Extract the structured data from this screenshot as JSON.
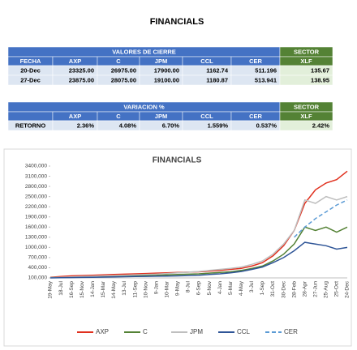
{
  "header": {
    "title": "FINANCIALS"
  },
  "table1": {
    "group": "VALORES DE CIERRE",
    "sector": "SECTOR",
    "columns": [
      "FECHA",
      "AXP",
      "C",
      "JPM",
      "CCL",
      "CER",
      "XLF"
    ],
    "rows": [
      [
        "20-Dec",
        "23325.00",
        "26975.00",
        "17900.00",
        "1162.74",
        "511.196",
        "135.67"
      ],
      [
        "27-Dec",
        "23875.00",
        "28075.00",
        "19100.00",
        "1180.87",
        "513.941",
        "138.95"
      ]
    ]
  },
  "table2": {
    "group": "VARIACION %",
    "sector": "SECTOR",
    "columns": [
      "AXP",
      "C",
      "JPM",
      "CCL",
      "CER",
      "XLF"
    ],
    "rows": [
      [
        "RETORNO",
        "2.36%",
        "4.08%",
        "6.70%",
        "1.559%",
        "0.537%",
        "2.42%"
      ]
    ]
  },
  "chart_data": {
    "type": "line",
    "title": "FINANCIALS",
    "categories": [
      "19-May",
      "18-Jul",
      "16-Sep",
      "15-Nov",
      "14-Jan",
      "15-Mar",
      "14-May",
      "13-Jul",
      "11-Sep",
      "10-Nov",
      "9-Jan",
      "10-Mar",
      "9-May",
      "8-Jul",
      "6-Sep",
      "5-Nov",
      "4-Jan",
      "5-Mar",
      "4-May",
      "3-Jul",
      "1-Sep",
      "31-Oct",
      "30-Dec",
      "28-Feb",
      "28-Apr",
      "27-Jun",
      "25-Aug",
      "25-Oct",
      "24-Dec"
    ],
    "series": [
      {
        "name": "AXP",
        "color": "#e0301e",
        "values": [
          120000,
          140000,
          160000,
          170000,
          180000,
          190000,
          200000,
          210000,
          220000,
          230000,
          240000,
          250000,
          260000,
          270000,
          280000,
          300000,
          320000,
          350000,
          380000,
          450000,
          550000,
          750000,
          1050000,
          1500000,
          2300000,
          2700000,
          2900000,
          3000000,
          3250000
        ]
      },
      {
        "name": "C",
        "color": "#548235",
        "values": [
          110000,
          115000,
          120000,
          125000,
          130000,
          140000,
          150000,
          160000,
          170000,
          175000,
          180000,
          190000,
          200000,
          210000,
          220000,
          240000,
          260000,
          280000,
          320000,
          380000,
          450000,
          600000,
          800000,
          1100000,
          1600000,
          1500000,
          1600000,
          1450000,
          1600000
        ]
      },
      {
        "name": "JPM",
        "color": "#bfbfbf",
        "values": [
          110000,
          120000,
          130000,
          140000,
          150000,
          160000,
          170000,
          180000,
          190000,
          200000,
          210000,
          230000,
          250000,
          270000,
          290000,
          320000,
          350000,
          380000,
          420000,
          500000,
          600000,
          800000,
          1100000,
          1500000,
          2400000,
          2300000,
          2500000,
          2400000,
          2500000
        ]
      },
      {
        "name": "CCL",
        "color": "#2f5597",
        "values": [
          100000,
          105000,
          110000,
          115000,
          120000,
          125000,
          130000,
          135000,
          140000,
          145000,
          150000,
          155000,
          160000,
          170000,
          180000,
          200000,
          220000,
          250000,
          290000,
          350000,
          420000,
          550000,
          700000,
          900000,
          1150000,
          1100000,
          1050000,
          950000,
          1000000
        ]
      },
      {
        "name": "CER",
        "color": "#5b9bd5",
        "dashed": true,
        "values": [
          null,
          null,
          null,
          null,
          null,
          null,
          null,
          null,
          null,
          null,
          null,
          null,
          null,
          null,
          null,
          null,
          null,
          null,
          null,
          null,
          null,
          null,
          null,
          1300000,
          1600000,
          1850000,
          2050000,
          2250000,
          2400000
        ]
      }
    ],
    "ylim": [
      100000,
      3400000
    ],
    "yticks": [
      {
        "value": 100000,
        "label": "100,000"
      },
      {
        "value": 400000,
        "label": "400,000"
      },
      {
        "value": 700000,
        "label": "700,000"
      },
      {
        "value": 1000000,
        "label": "1000,000"
      },
      {
        "value": 1300000,
        "label": "1300,000"
      },
      {
        "value": 1600000,
        "label": "1600,000"
      },
      {
        "value": 1900000,
        "label": "1900,000"
      },
      {
        "value": 2200000,
        "label": "2200,000"
      },
      {
        "value": 2500000,
        "label": "2500,000"
      },
      {
        "value": 2800000,
        "label": "2800,000"
      },
      {
        "value": 3100000,
        "label": "3100,000"
      },
      {
        "value": 3400000,
        "label": "3400,000"
      }
    ],
    "grid": false
  }
}
